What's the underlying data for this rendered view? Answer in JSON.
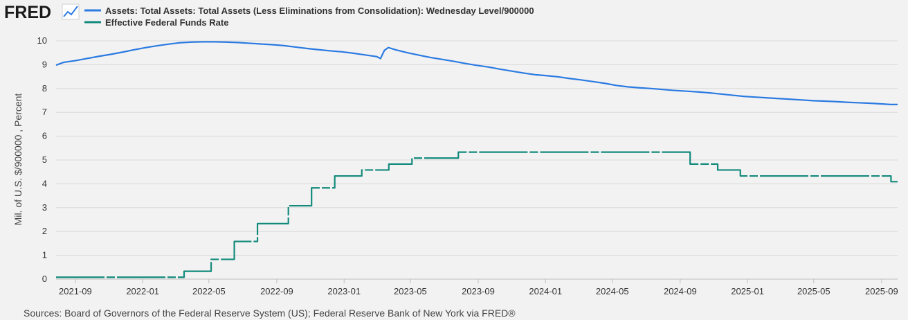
{
  "header": {
    "logo_text": "FRED",
    "logo_icon": "trend-line-icon"
  },
  "legend": [
    {
      "label": "Assets: Total Assets: Total Assets (Less Eliminations from Consolidation): Wednesday Level/900000",
      "color": "#2a7ae2"
    },
    {
      "label": "Effective Federal Funds Rate",
      "color": "#138a7c"
    }
  ],
  "source": "Sources: Board of Governors of the Federal Reserve System (US); Federal Reserve Bank of New York via FRED®",
  "chart_data": {
    "type": "line",
    "title": "",
    "ylabel": "Mil. of U.S. $/900000 , Percent",
    "xlabel": "",
    "ylim": [
      0,
      10
    ],
    "xlim": [
      "2021-07-28",
      "2025-09-30"
    ],
    "grid": "horizontal",
    "yticks": [
      "0",
      "1",
      "2",
      "3",
      "4",
      "5",
      "6",
      "7",
      "8",
      "9",
      "10"
    ],
    "xticks": [
      "2021-09",
      "2022-01",
      "2022-05",
      "2022-09",
      "2023-01",
      "2023-05",
      "2023-09",
      "2024-01",
      "2024-05",
      "2024-09",
      "2025-01",
      "2025-05",
      "2025-09"
    ],
    "series": [
      {
        "name": "Assets: Total Assets: Total Assets (Less Eliminations from Consolidation): Wednesday Level/900000",
        "color": "#2a7ae2",
        "style": "solid",
        "x": [
          "2021-07-28",
          "2021-08-11",
          "2021-09-01",
          "2021-09-22",
          "2021-10-13",
          "2021-11-03",
          "2021-11-24",
          "2021-12-15",
          "2022-01-05",
          "2022-01-26",
          "2022-02-16",
          "2022-03-09",
          "2022-03-30",
          "2022-04-20",
          "2022-05-11",
          "2022-06-01",
          "2022-06-22",
          "2022-07-13",
          "2022-08-03",
          "2022-08-24",
          "2022-09-14",
          "2022-10-05",
          "2022-10-26",
          "2022-11-16",
          "2022-12-07",
          "2022-12-28",
          "2023-01-18",
          "2023-02-08",
          "2023-03-01",
          "2023-03-08",
          "2023-03-15",
          "2023-03-22",
          "2023-04-05",
          "2023-04-26",
          "2023-05-17",
          "2023-06-07",
          "2023-06-28",
          "2023-07-19",
          "2023-08-09",
          "2023-08-30",
          "2023-09-20",
          "2023-10-11",
          "2023-11-01",
          "2023-11-22",
          "2023-12-13",
          "2024-01-03",
          "2024-01-24",
          "2024-02-14",
          "2024-03-06",
          "2024-03-27",
          "2024-04-17",
          "2024-05-08",
          "2024-05-29",
          "2024-06-19",
          "2024-07-10",
          "2024-07-31",
          "2024-08-21",
          "2024-09-11",
          "2024-10-02",
          "2024-10-23",
          "2024-11-13",
          "2024-12-04",
          "2024-12-25",
          "2025-01-15",
          "2025-02-05",
          "2025-02-26",
          "2025-03-19",
          "2025-04-09",
          "2025-04-30",
          "2025-05-21",
          "2025-06-11",
          "2025-07-02",
          "2025-07-23",
          "2025-08-13",
          "2025-09-03",
          "2025-09-17",
          "2025-09-30"
        ],
        "values": [
          8.98,
          9.1,
          9.17,
          9.26,
          9.35,
          9.43,
          9.52,
          9.62,
          9.71,
          9.79,
          9.86,
          9.92,
          9.95,
          9.96,
          9.96,
          9.95,
          9.93,
          9.9,
          9.87,
          9.84,
          9.8,
          9.74,
          9.68,
          9.63,
          9.58,
          9.54,
          9.48,
          9.41,
          9.34,
          9.26,
          9.6,
          9.72,
          9.62,
          9.5,
          9.4,
          9.3,
          9.22,
          9.14,
          9.05,
          8.97,
          8.9,
          8.81,
          8.73,
          8.65,
          8.58,
          8.54,
          8.49,
          8.42,
          8.36,
          8.29,
          8.22,
          8.13,
          8.07,
          8.03,
          8.0,
          7.96,
          7.92,
          7.89,
          7.86,
          7.82,
          7.77,
          7.72,
          7.67,
          7.64,
          7.61,
          7.58,
          7.55,
          7.52,
          7.49,
          7.47,
          7.45,
          7.42,
          7.4,
          7.38,
          7.35,
          7.33,
          7.33
        ]
      },
      {
        "name": "Effective Federal Funds Rate",
        "color": "#138a7c",
        "style": "step",
        "x": [
          "2021-07-28",
          "2022-03-17",
          "2022-05-05",
          "2022-06-16",
          "2022-07-28",
          "2022-09-22",
          "2022-11-03",
          "2022-12-15",
          "2023-02-02",
          "2023-03-23",
          "2023-05-04",
          "2023-07-27",
          "2024-09-19",
          "2024-11-08",
          "2024-12-19",
          "2025-09-18",
          "2025-09-30"
        ],
        "values": [
          0.08,
          0.33,
          0.83,
          1.58,
          2.33,
          3.08,
          3.83,
          4.33,
          4.58,
          4.83,
          5.08,
          5.33,
          4.83,
          4.58,
          4.33,
          4.09,
          4.09
        ]
      }
    ]
  }
}
